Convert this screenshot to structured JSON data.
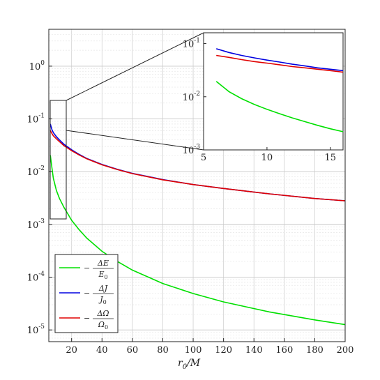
{
  "chart_data": [
    {
      "type": "line",
      "xlabel": "r_0/M",
      "ylabel": "",
      "xlim": [
        5,
        200
      ],
      "ylim": [
        6e-06,
        5
      ],
      "yscale": "log",
      "grid": true,
      "legend_position": "bottom-left",
      "x_ticks": [
        "20",
        "40",
        "60",
        "80",
        "100",
        "120",
        "140",
        "160",
        "180",
        "200"
      ],
      "y_ticks": [
        "10^0",
        "10^-1",
        "10^-2",
        "10^-3",
        "10^-4",
        "10^-5"
      ],
      "x": [
        6,
        7,
        8,
        10,
        12,
        15,
        20,
        25,
        30,
        40,
        50,
        60,
        80,
        100,
        120,
        150,
        180,
        200
      ],
      "series": [
        {
          "name": "−ΔE/E₀",
          "color": "#00e000",
          "values": [
            0.0205,
            0.012,
            0.0075,
            0.0044,
            0.0031,
            0.0021,
            0.0012,
            0.00079,
            0.00055,
            0.00031,
            0.0002,
            0.000136,
            7.6e-05,
            4.9e-05,
            3.4e-05,
            2.2e-05,
            1.55e-05,
            1.26e-05
          ]
        },
        {
          "name": "−ΔJ/J₀",
          "color": "#0000e0",
          "values": [
            0.08,
            0.063,
            0.055,
            0.046,
            0.04,
            0.033,
            0.026,
            0.0212,
            0.0178,
            0.0137,
            0.0111,
            0.0093,
            0.0071,
            0.0057,
            0.0048,
            0.0038,
            0.0031,
            0.0028
          ]
        },
        {
          "name": "−ΔΩ/Ω₀",
          "color": "#e00000",
          "values": [
            0.06,
            0.053,
            0.048,
            0.042,
            0.037,
            0.031,
            0.025,
            0.0207,
            0.0175,
            0.0135,
            0.011,
            0.0092,
            0.007,
            0.0057,
            0.0048,
            0.0038,
            0.0031,
            0.0028
          ]
        }
      ]
    },
    {
      "type": "line",
      "xlim": [
        5,
        16
      ],
      "ylim": [
        0.001,
        0.16
      ],
      "yscale": "log",
      "grid": false,
      "x_ticks": [
        "5",
        "10",
        "15"
      ],
      "y_ticks": [
        "10^-1",
        "10^-2",
        "10^-3"
      ],
      "x": [
        6,
        7,
        8,
        9,
        10,
        11,
        12,
        13,
        14,
        15,
        16
      ],
      "series": [
        {
          "color": "#00e000",
          "values": [
            0.0195,
            0.0125,
            0.0092,
            0.0072,
            0.0058,
            0.0048,
            0.004,
            0.0034,
            0.0029,
            0.0025,
            0.0022
          ]
        },
        {
          "color": "#0000e0",
          "values": [
            0.08,
            0.068,
            0.06,
            0.054,
            0.049,
            0.045,
            0.041,
            0.038,
            0.035,
            0.033,
            0.031
          ]
        },
        {
          "color": "#e00000",
          "values": [
            0.06,
            0.055,
            0.05,
            0.046,
            0.043,
            0.04,
            0.037,
            0.035,
            0.033,
            0.031,
            0.029
          ]
        }
      ]
    }
  ]
}
